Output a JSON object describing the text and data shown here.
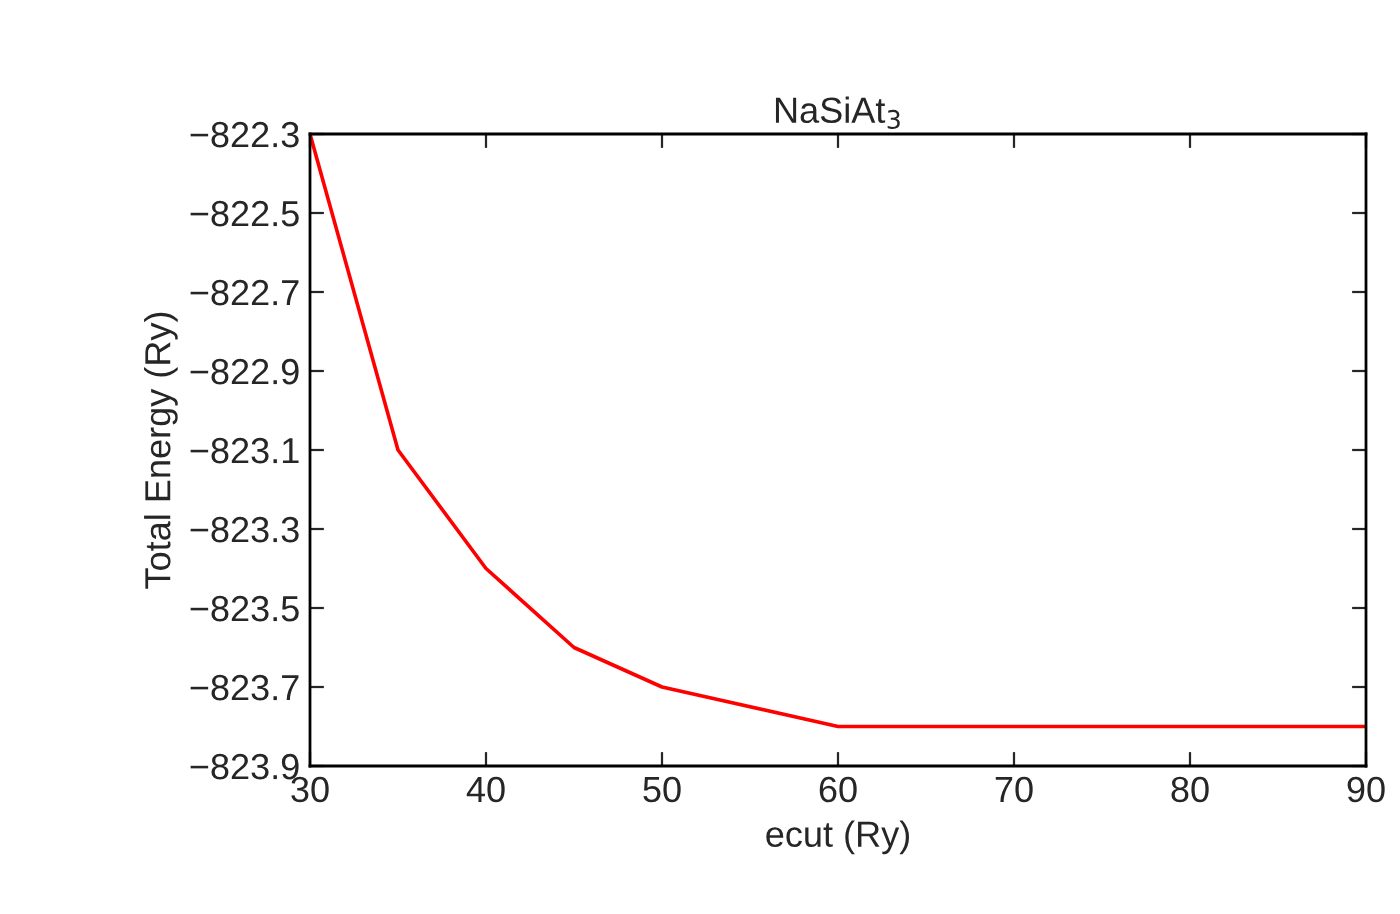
{
  "chart_data": {
    "type": "line",
    "title": "NaSiAt$_{3}$",
    "xlabel": "ecut (Ry)",
    "ylabel": "Total Energy (Ry)",
    "x": [
      30,
      35,
      40,
      45,
      50,
      60,
      70,
      80,
      90
    ],
    "series": [
      {
        "color": "#ff0000",
        "values": [
          -822.3,
          -823.1,
          -823.4,
          -823.6,
          -823.7,
          -823.8,
          -823.8,
          -823.8,
          -823.8
        ]
      }
    ],
    "xlim": [
      30,
      90
    ],
    "xticks": [
      30,
      40,
      50,
      60,
      70,
      80,
      90
    ],
    "ylim": [
      -823.9,
      -822.3
    ],
    "yticks": [
      -822.3,
      -822.5,
      -822.7,
      -822.9,
      -823.1,
      -823.3,
      -823.5,
      -823.7,
      -823.9
    ],
    "grid": false,
    "legend": false
  }
}
